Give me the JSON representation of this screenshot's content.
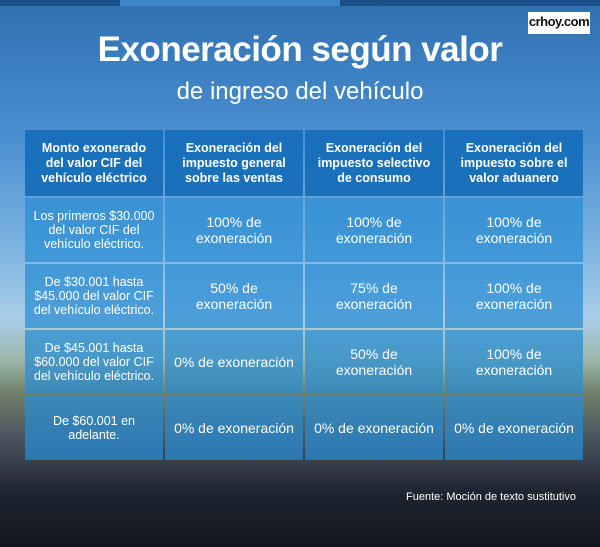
{
  "header": {
    "logo": "crhoy.com",
    "title": "Exoneración según valor",
    "subtitle": "de ingreso del vehículo"
  },
  "table": {
    "columns": [
      "Monto exonerado del valor CIF del vehículo eléctrico",
      "Exoneración del impuesto general sobre las ventas",
      "Exoneración del impuesto selectivo de consumo",
      "Exoneración del impuesto sobre el valor aduanero"
    ],
    "rows": [
      [
        "Los primeros $30.000 del valor CIF del vehículo eléctrico.",
        "100% de exoneración",
        "100% de exoneración",
        "100% de exoneración"
      ],
      [
        "De $30.001 hasta $45.000 del valor CIF del vehículo eléctrico.",
        "50% de exoneración",
        "75% de exoneración",
        "100% de exoneración"
      ],
      [
        "De $45.001 hasta $60.000 del valor CIF del vehículo eléctrico.",
        "0% de exoneración",
        "50% de exoneración",
        "100% de exoneración"
      ],
      [
        "De $60.001 en adelante.",
        "0% de exoneración",
        "0% de exoneración",
        "0% de exoneración"
      ]
    ]
  },
  "source": "Fuente: Moción de texto sustitutivo"
}
